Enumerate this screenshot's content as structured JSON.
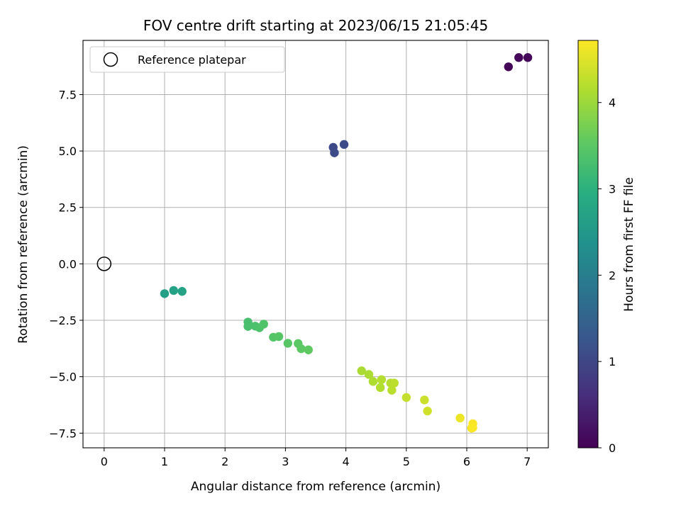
{
  "chart_data": {
    "type": "scatter",
    "title": "FOV centre drift starting at 2023/06/15 21:05:45",
    "xlabel": "Angular distance from reference (arcmin)",
    "ylabel": "Rotation from reference (arcmin)",
    "colorbar_label": "Hours from first FF file",
    "xlim": [
      -0.35,
      7.35
    ],
    "ylim": [
      -8.15,
      9.9
    ],
    "clim": [
      0,
      4.72
    ],
    "colormap": "viridis",
    "grid": true,
    "legend_position": "upper-left",
    "x_ticks": [
      {
        "value": 0,
        "label": "0"
      },
      {
        "value": 1,
        "label": "1"
      },
      {
        "value": 2,
        "label": "2"
      },
      {
        "value": 3,
        "label": "3"
      },
      {
        "value": 4,
        "label": "4"
      },
      {
        "value": 5,
        "label": "5"
      },
      {
        "value": 6,
        "label": "6"
      },
      {
        "value": 7,
        "label": "7"
      }
    ],
    "y_ticks": [
      {
        "value": -7.5,
        "label": "−7.5"
      },
      {
        "value": -5,
        "label": "−5.0"
      },
      {
        "value": -2.5,
        "label": "−2.5"
      },
      {
        "value": 0,
        "label": "0.0"
      },
      {
        "value": 2.5,
        "label": "2.5"
      },
      {
        "value": 5,
        "label": "5.0"
      },
      {
        "value": 7.5,
        "label": "7.5"
      }
    ],
    "colorbar_ticks": [
      {
        "value": 0,
        "label": "0"
      },
      {
        "value": 1,
        "label": "1"
      },
      {
        "value": 2,
        "label": "2"
      },
      {
        "value": 3,
        "label": "3"
      },
      {
        "value": 4,
        "label": "4"
      }
    ],
    "reference": {
      "name": "Reference platepar",
      "x": 0,
      "y": 0
    },
    "points": [
      {
        "x": 6.69,
        "y": 8.73,
        "c": 0.05
      },
      {
        "x": 6.86,
        "y": 9.14,
        "c": 0.08
      },
      {
        "x": 7.01,
        "y": 9.14,
        "c": 0.1
      },
      {
        "x": 3.79,
        "y": 5.16,
        "c": 1.05
      },
      {
        "x": 3.81,
        "y": 4.92,
        "c": 1.07
      },
      {
        "x": 3.97,
        "y": 5.29,
        "c": 1.09
      },
      {
        "x": 1.0,
        "y": -1.32,
        "c": 2.65
      },
      {
        "x": 1.15,
        "y": -1.18,
        "c": 2.68
      },
      {
        "x": 1.29,
        "y": -1.22,
        "c": 2.7
      },
      {
        "x": 2.38,
        "y": -2.58,
        "c": 3.3
      },
      {
        "x": 2.38,
        "y": -2.77,
        "c": 3.32
      },
      {
        "x": 2.5,
        "y": -2.76,
        "c": 3.34
      },
      {
        "x": 2.57,
        "y": -2.83,
        "c": 3.36
      },
      {
        "x": 2.64,
        "y": -2.67,
        "c": 3.38
      },
      {
        "x": 2.8,
        "y": -3.25,
        "c": 3.42
      },
      {
        "x": 2.89,
        "y": -3.22,
        "c": 3.45
      },
      {
        "x": 3.04,
        "y": -3.52,
        "c": 3.48
      },
      {
        "x": 3.21,
        "y": -3.53,
        "c": 3.5
      },
      {
        "x": 3.26,
        "y": -3.76,
        "c": 3.52
      },
      {
        "x": 3.38,
        "y": -3.81,
        "c": 3.55
      },
      {
        "x": 4.26,
        "y": -4.74,
        "c": 4.1
      },
      {
        "x": 4.38,
        "y": -4.9,
        "c": 4.12
      },
      {
        "x": 4.45,
        "y": -5.21,
        "c": 4.14
      },
      {
        "x": 4.57,
        "y": -5.48,
        "c": 4.16
      },
      {
        "x": 4.59,
        "y": -5.13,
        "c": 4.18
      },
      {
        "x": 4.74,
        "y": -5.28,
        "c": 4.2
      },
      {
        "x": 4.76,
        "y": -5.6,
        "c": 4.22
      },
      {
        "x": 4.8,
        "y": -5.28,
        "c": 4.24
      },
      {
        "x": 5.0,
        "y": -5.92,
        "c": 4.3
      },
      {
        "x": 5.3,
        "y": -6.03,
        "c": 4.35
      },
      {
        "x": 5.35,
        "y": -6.52,
        "c": 4.38
      },
      {
        "x": 5.89,
        "y": -6.83,
        "c": 4.6
      },
      {
        "x": 6.08,
        "y": -7.28,
        "c": 4.65
      },
      {
        "x": 6.1,
        "y": -7.08,
        "c": 4.68
      },
      {
        "x": 6.1,
        "y": -7.26,
        "c": 4.7
      }
    ]
  }
}
